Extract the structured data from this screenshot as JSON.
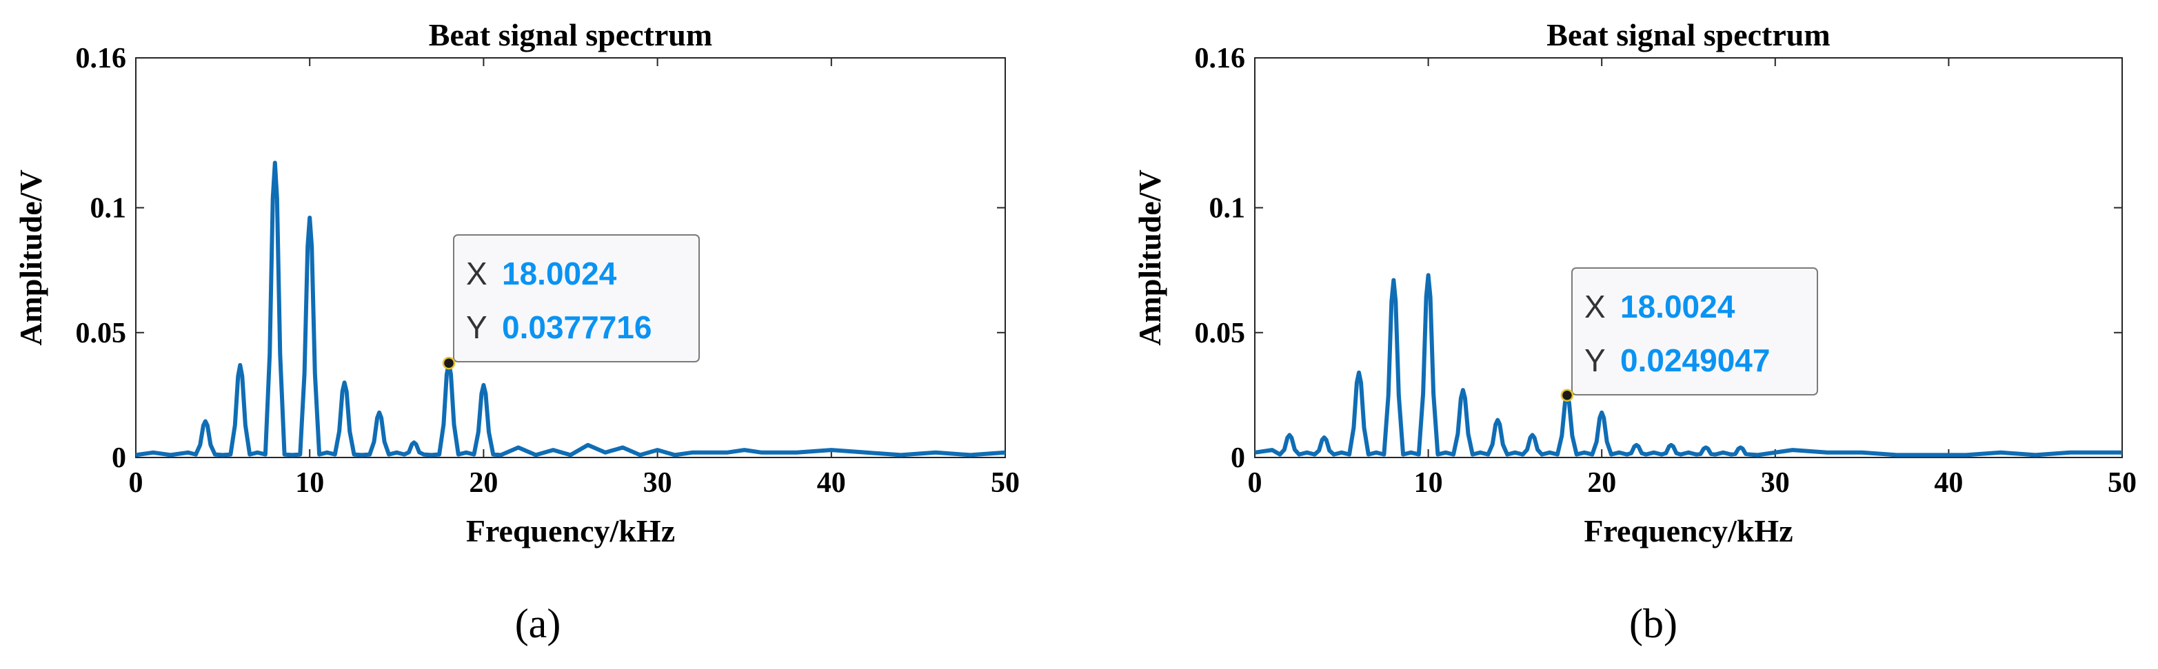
{
  "chart_data": [
    {
      "type": "line",
      "caption": "(a)",
      "title": "Beat signal spectrum",
      "xlabel": "Frequency/kHz",
      "ylabel": "Amplitude/V",
      "xlim": [
        0,
        50
      ],
      "ylim": [
        0,
        0.16
      ],
      "xticks": [
        0,
        10,
        20,
        30,
        40,
        50
      ],
      "xtick_labels": [
        "0",
        "10",
        "20",
        "30",
        "40",
        "50"
      ],
      "yticks": [
        0,
        0.05,
        0.1,
        0.16
      ],
      "ytick_labels": [
        "0",
        "0.05",
        "0.1",
        "0.16"
      ],
      "grid": false,
      "color": "#0f6db5",
      "baseline": [
        [
          0,
          0.001
        ],
        [
          1,
          0.002
        ],
        [
          2,
          0.001
        ],
        [
          3,
          0.002
        ],
        [
          5,
          0.001
        ],
        [
          7,
          0.002
        ],
        [
          9,
          0.001
        ],
        [
          11,
          0.002
        ],
        [
          13,
          0.001
        ],
        [
          15,
          0.002
        ],
        [
          17,
          0.001
        ],
        [
          19,
          0.002
        ],
        [
          21,
          0.001
        ],
        [
          22,
          0.004
        ],
        [
          23,
          0.001
        ],
        [
          24,
          0.003
        ],
        [
          25,
          0.001
        ],
        [
          26,
          0.005
        ],
        [
          27,
          0.002
        ],
        [
          28,
          0.004
        ],
        [
          29,
          0.001
        ],
        [
          30,
          0.003
        ],
        [
          31,
          0.001
        ],
        [
          32,
          0.002
        ],
        [
          34,
          0.002
        ],
        [
          35,
          0.003
        ],
        [
          36,
          0.002
        ],
        [
          38,
          0.002
        ],
        [
          40,
          0.003
        ],
        [
          42,
          0.002
        ],
        [
          44,
          0.001
        ],
        [
          46,
          0.002
        ],
        [
          48,
          0.001
        ],
        [
          50,
          0.002
        ]
      ],
      "peaks": [
        {
          "x": 4,
          "y": 0.0145
        },
        {
          "x": 6,
          "y": 0.037
        },
        {
          "x": 8,
          "y": 0.118
        },
        {
          "x": 10,
          "y": 0.096
        },
        {
          "x": 12,
          "y": 0.03
        },
        {
          "x": 14,
          "y": 0.018
        },
        {
          "x": 16,
          "y": 0.006
        },
        {
          "x": 18,
          "y": 0.0377716
        },
        {
          "x": 20,
          "y": 0.029
        }
      ],
      "datatip": {
        "x_key": "X",
        "x_value": "18.0024",
        "y_key": "Y",
        "y_value": "0.0377716",
        "x": 18.0024,
        "y": 0.0377716
      }
    },
    {
      "type": "line",
      "caption": "(b)",
      "title": "Beat signal spectrum",
      "xlabel": "Frequency/kHz",
      "ylabel": "Amplitude/V",
      "xlim": [
        0,
        50
      ],
      "ylim": [
        0,
        0.16
      ],
      "xticks": [
        0,
        10,
        20,
        30,
        40,
        50
      ],
      "xtick_labels": [
        "0",
        "10",
        "20",
        "30",
        "40",
        "50"
      ],
      "yticks": [
        0,
        0.05,
        0.1,
        0.16
      ],
      "ytick_labels": [
        "0",
        "0.05",
        "0.1",
        "0.16"
      ],
      "grid": false,
      "color": "#0f6db5",
      "baseline": [
        [
          0,
          0.002
        ],
        [
          1,
          0.003
        ],
        [
          3,
          0.002
        ],
        [
          5,
          0.002
        ],
        [
          7,
          0.002
        ],
        [
          9,
          0.002
        ],
        [
          11,
          0.002
        ],
        [
          13,
          0.002
        ],
        [
          15,
          0.002
        ],
        [
          17,
          0.002
        ],
        [
          19,
          0.002
        ],
        [
          21,
          0.002
        ],
        [
          23,
          0.002
        ],
        [
          25,
          0.002
        ],
        [
          27,
          0.002
        ],
        [
          29,
          0.001
        ],
        [
          31,
          0.003
        ],
        [
          33,
          0.002
        ],
        [
          35,
          0.002
        ],
        [
          37,
          0.001
        ],
        [
          39,
          0.001
        ],
        [
          41,
          0.001
        ],
        [
          43,
          0.002
        ],
        [
          45,
          0.001
        ],
        [
          47,
          0.002
        ],
        [
          49,
          0.002
        ],
        [
          50,
          0.002
        ]
      ],
      "peaks": [
        {
          "x": 2,
          "y": 0.009
        },
        {
          "x": 4,
          "y": 0.008
        },
        {
          "x": 6,
          "y": 0.034
        },
        {
          "x": 8,
          "y": 0.071
        },
        {
          "x": 10,
          "y": 0.073
        },
        {
          "x": 12,
          "y": 0.027
        },
        {
          "x": 14,
          "y": 0.015
        },
        {
          "x": 16,
          "y": 0.009
        },
        {
          "x": 18,
          "y": 0.0249047
        },
        {
          "x": 20,
          "y": 0.018
        },
        {
          "x": 22,
          "y": 0.005
        },
        {
          "x": 24,
          "y": 0.005
        },
        {
          "x": 26,
          "y": 0.004
        },
        {
          "x": 28,
          "y": 0.004
        }
      ],
      "datatip": {
        "x_key": "X",
        "x_value": "18.0024",
        "y_key": "Y",
        "y_value": "0.0249047",
        "x": 18.0024,
        "y": 0.0249047
      }
    }
  ]
}
